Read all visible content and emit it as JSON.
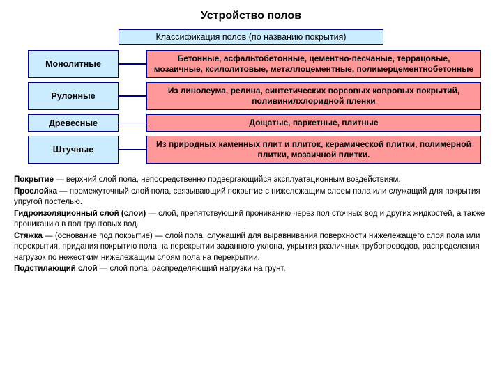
{
  "title": "Устройство полов",
  "subtitle": "Классификация полов (по названию покрытия)",
  "colors": {
    "blue_border": "#000080",
    "blue_fill": "#ccecff",
    "pink_fill": "#ff9999",
    "background": "#ffffff",
    "text": "#000000"
  },
  "rows": [
    {
      "category": "Монолитные",
      "description": "Бетонные, асфальтобетонные, цементно-песчаные, террацовые, мозаичные, ксилолитовые, металлоцементные, полимерцементнобетонные"
    },
    {
      "category": "Рулонные",
      "description": "Из линолеума, релина, синтетических ворсовых ковровых покрытий, поливинилхлоридной пленки"
    },
    {
      "category": "Древесные",
      "description": "Дощатые, паркетные, плитные"
    },
    {
      "category": "Штучные",
      "description": "Из природных каменных плит и плиток, керамической плитки, полимерной плитки, мозаичной плитки."
    }
  ],
  "defs": [
    {
      "term": "Покрытие",
      "text": " — верхний слой пола, непосредственно подвергающийся эксплуатационным воздействиям."
    },
    {
      "term": "Прослойка",
      "text": " — промежуточный слой пола, связывающий покрытие с нижележащим слоем пола или служащий для покрытия упругой постелью."
    },
    {
      "term": "Гидроизоляционный слой (слои)",
      "text": " — слой, препятствующий прониканию через пол сточных вод и других жидкостей, а также прониканию в пол грунтовых вод."
    },
    {
      "term": "Стяжка",
      "text": " — (основание под покрытие) — слой пола, служащий для выравнивания поверхности нижележащего слоя пола или перекрытия, придания покрытию пола на перекрытии заданного уклона, укрытия различных трубопроводов, распределения нагрузок по нежестким нижележащим слоям пола на перекрытии."
    },
    {
      "term": "Подстилающий слой",
      "text": " — слой пола, распределяющий нагрузки на грунт."
    }
  ]
}
